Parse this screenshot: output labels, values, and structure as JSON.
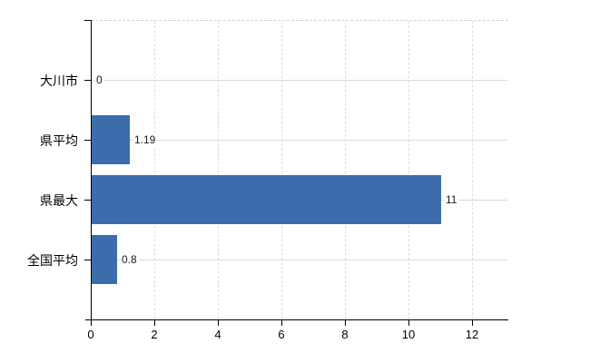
{
  "chart_data": {
    "type": "bar",
    "orientation": "horizontal",
    "title": "",
    "xlabel": "",
    "ylabel": "",
    "categories": [
      "大川市",
      "県平均",
      "県最大",
      "全国平均"
    ],
    "values": [
      0,
      1.19,
      11,
      0.8
    ],
    "value_labels": [
      "0",
      "1.19",
      "11",
      "0.8"
    ],
    "x_ticks": [
      0,
      2,
      4,
      6,
      8,
      10,
      12
    ],
    "x_tick_labels": [
      "0",
      "2",
      "4",
      "6",
      "8",
      "10",
      "12"
    ],
    "xlim": [
      0,
      13.14
    ],
    "grid": true,
    "legend": false
  },
  "colors": {
    "bar": "#3b6dad",
    "h_gridline": "#d7dcd2",
    "v_gridline": "#dcdcdc",
    "plot_top_border": "#cfcfcf",
    "axis": "#000000",
    "background": "#ffffff"
  }
}
